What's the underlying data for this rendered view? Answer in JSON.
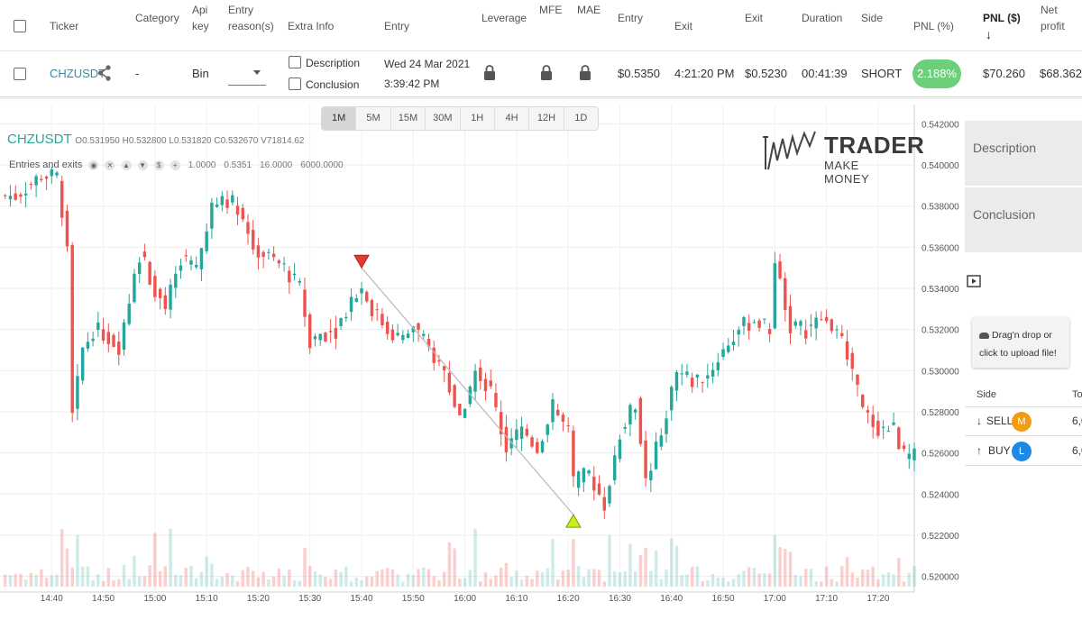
{
  "table": {
    "headers": {
      "ticker": "Ticker",
      "category": "Category",
      "api_key_1": "Api",
      "api_key_2": "key",
      "entry_reason_1": "Entry",
      "entry_reason_2": "reason(s)",
      "extra_info": "Extra Info",
      "entry": "Entry",
      "leverage": "Leverage",
      "mfe": "MFE",
      "mae": "MAE",
      "entry_price": "Entry",
      "exit_time": "Exit",
      "exit_price": "Exit",
      "duration": "Duration",
      "side": "Side",
      "pnl_pct": "PNL (%)",
      "pnl_usd": "PNL ($)",
      "sort_arrow": "↓",
      "net_profit_1": "Net",
      "net_profit_2": "profit"
    },
    "row": {
      "ticker": "CHZUSDT",
      "category": "-",
      "api_key": "Bin",
      "description_label": "Description",
      "conclusion_label": "Conclusion",
      "entry_date": "Wed 24 Mar 2021",
      "entry_time": "3:39:42 PM",
      "entry_price": "$0.5350",
      "exit_time": "4:21:20 PM",
      "exit_price": "$0.5230",
      "duration": "00:41:39",
      "side": "SHORT",
      "pnl_pct": "2.188%",
      "pnl_usd": "$70.260",
      "net_profit": "$68.362"
    }
  },
  "chart": {
    "timeframes": [
      "1M",
      "5M",
      "15M",
      "30M",
      "1H",
      "4H",
      "12H",
      "1D"
    ],
    "active_timeframe": "1M",
    "symbol": "CHZUSDT",
    "ohlcv": {
      "o_label": "O",
      "o": "0.531950",
      "h_label": "H",
      "h": "0.532800",
      "l_label": "L",
      "l": "0.531820",
      "c_label": "C",
      "c": "0.532670",
      "v_label": "V",
      "v": "71814.62"
    },
    "indicator_name": "Entries and exits",
    "indicator_values": [
      "1.0000",
      "0.5351",
      "16.0000",
      "6000.0000"
    ],
    "logo_big": "TRADER",
    "logo_small": "MAKE MONEY",
    "up_color": "#26a69a",
    "down_color": "#ef5350",
    "price_labels": [
      "0.542000",
      "0.540000",
      "0.538000",
      "0.536000",
      "0.534000",
      "0.532000",
      "0.530000",
      "0.528000",
      "0.526000",
      "0.524000",
      "0.522000",
      "0.520000"
    ],
    "time_labels": [
      "14:40",
      "14:50",
      "15:00",
      "15:10",
      "15:20",
      "15:30",
      "15:40",
      "15:50",
      "16:00",
      "16:10",
      "16:20",
      "16:30",
      "16:40",
      "16:50",
      "17:00",
      "17:10",
      "17:20"
    ]
  },
  "chart_data": {
    "type": "candlestick",
    "price_axis": [
      0.5195,
      0.5425
    ],
    "time_range": [
      "14:40",
      "17:20"
    ],
    "entry_marker": {
      "time": "15:40",
      "price": 0.535,
      "direction": "sell"
    },
    "exit_marker": {
      "time": "16:21",
      "price": 0.523,
      "direction": "buy"
    },
    "close_path": [
      [
        "14:33",
        0.5385
      ],
      [
        "14:38",
        0.5395
      ],
      [
        "14:41",
        0.5394
      ],
      [
        "14:43",
        0.5362
      ],
      [
        "14:44",
        0.528
      ],
      [
        "14:46",
        0.531
      ],
      [
        "14:48",
        0.532
      ],
      [
        "14:50",
        0.5318
      ],
      [
        "14:53",
        0.5312
      ],
      [
        "14:55",
        0.5335
      ],
      [
        "14:57",
        0.5357
      ],
      [
        "15:00",
        0.534
      ],
      [
        "15:02",
        0.533
      ],
      [
        "15:05",
        0.5355
      ],
      [
        "15:08",
        0.535
      ],
      [
        "15:11",
        0.5378
      ],
      [
        "15:13",
        0.5385
      ],
      [
        "15:16",
        0.538
      ],
      [
        "15:19",
        0.536
      ],
      [
        "15:22",
        0.5355
      ],
      [
        "15:25",
        0.535
      ],
      [
        "15:28",
        0.534
      ],
      [
        "15:30",
        0.5315
      ],
      [
        "15:32",
        0.5318
      ],
      [
        "15:35",
        0.532
      ],
      [
        "15:38",
        0.5335
      ],
      [
        "15:40",
        0.534
      ],
      [
        "15:42",
        0.533
      ],
      [
        "15:45",
        0.532
      ],
      [
        "15:48",
        0.5315
      ],
      [
        "15:50",
        0.5322
      ],
      [
        "15:53",
        0.531
      ],
      [
        "15:56",
        0.53
      ],
      [
        "15:59",
        0.5275
      ],
      [
        "16:02",
        0.53
      ],
      [
        "16:05",
        0.529
      ],
      [
        "16:08",
        0.5262
      ],
      [
        "16:11",
        0.5272
      ],
      [
        "16:14",
        0.5262
      ],
      [
        "16:17",
        0.5282
      ],
      [
        "16:20",
        0.527
      ],
      [
        "16:21",
        0.5245
      ],
      [
        "16:24",
        0.525
      ],
      [
        "16:27",
        0.5235
      ],
      [
        "16:30",
        0.527
      ],
      [
        "16:33",
        0.5285
      ],
      [
        "16:35",
        0.5245
      ],
      [
        "16:38",
        0.527
      ],
      [
        "16:41",
        0.53
      ],
      [
        "16:44",
        0.5295
      ],
      [
        "16:47",
        0.5298
      ],
      [
        "16:50",
        0.531
      ],
      [
        "16:53",
        0.532
      ],
      [
        "16:56",
        0.5325
      ],
      [
        "16:59",
        0.532
      ],
      [
        "17:00",
        0.5355
      ],
      [
        "17:03",
        0.5322
      ],
      [
        "17:06",
        0.532
      ],
      [
        "17:09",
        0.5325
      ],
      [
        "17:12",
        0.532
      ],
      [
        "17:15",
        0.53
      ],
      [
        "17:17",
        0.528
      ],
      [
        "17:20",
        0.5272
      ],
      [
        "17:23",
        0.5272
      ],
      [
        "17:25",
        0.5258
      ]
    ],
    "volume_axis": [
      0,
      1
    ]
  },
  "panel": {
    "description": "Description",
    "conclusion": "Conclusion",
    "upload_line1": "Drag'n drop or",
    "upload_line2": "click to upload file!",
    "side_header": "Side",
    "total_header": "To",
    "orders": [
      {
        "arrow": "↓",
        "side": "SELL",
        "badge": "M",
        "badge_color": "#f39c12",
        "total": "6,0"
      },
      {
        "arrow": "↑",
        "side": "BUY",
        "badge": "L",
        "badge_color": "#1e88e5",
        "total": "6,0"
      }
    ]
  }
}
